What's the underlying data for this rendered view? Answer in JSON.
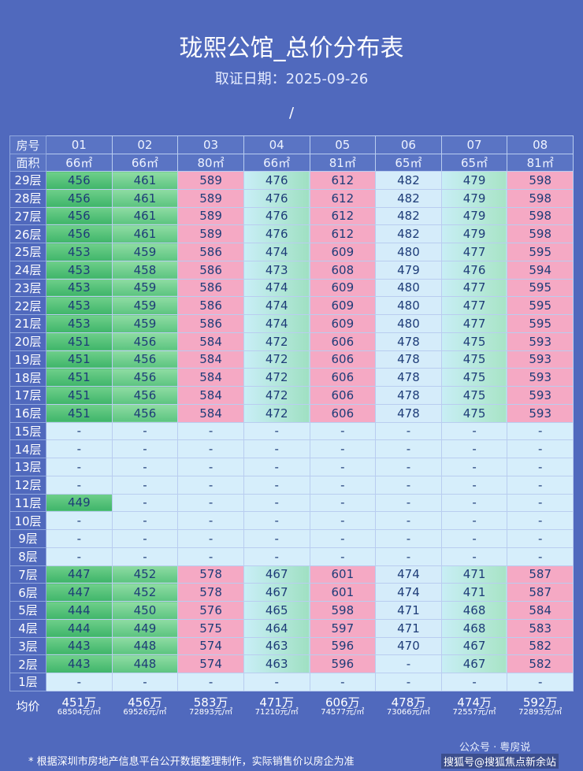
{
  "header": {
    "title": "珑熙公馆_总价分布表",
    "subtitle": "取证日期：2025-09-26",
    "divider": "/"
  },
  "table": {
    "unit_header": "房号",
    "area_header": "面积",
    "units": [
      "01",
      "02",
      "03",
      "04",
      "05",
      "06",
      "07",
      "08"
    ],
    "areas": [
      "66㎡",
      "66㎡",
      "80㎡",
      "66㎡",
      "81㎡",
      "65㎡",
      "65㎡",
      "81㎡"
    ],
    "rows": [
      {
        "floor": "29层",
        "cells": [
          "456",
          "461",
          "589",
          "476",
          "612",
          "482",
          "479",
          "598"
        ]
      },
      {
        "floor": "28层",
        "cells": [
          "456",
          "461",
          "589",
          "476",
          "612",
          "482",
          "479",
          "598"
        ]
      },
      {
        "floor": "27层",
        "cells": [
          "456",
          "461",
          "589",
          "476",
          "612",
          "482",
          "479",
          "598"
        ]
      },
      {
        "floor": "26层",
        "cells": [
          "456",
          "461",
          "589",
          "476",
          "612",
          "482",
          "479",
          "598"
        ]
      },
      {
        "floor": "25层",
        "cells": [
          "453",
          "459",
          "586",
          "474",
          "609",
          "480",
          "477",
          "595"
        ]
      },
      {
        "floor": "24层",
        "cells": [
          "453",
          "458",
          "586",
          "473",
          "608",
          "479",
          "476",
          "594"
        ]
      },
      {
        "floor": "23层",
        "cells": [
          "453",
          "459",
          "586",
          "474",
          "609",
          "480",
          "477",
          "595"
        ]
      },
      {
        "floor": "22层",
        "cells": [
          "453",
          "459",
          "586",
          "474",
          "609",
          "480",
          "477",
          "595"
        ]
      },
      {
        "floor": "21层",
        "cells": [
          "453",
          "459",
          "586",
          "474",
          "609",
          "480",
          "477",
          "595"
        ]
      },
      {
        "floor": "20层",
        "cells": [
          "451",
          "456",
          "584",
          "472",
          "606",
          "478",
          "475",
          "593"
        ]
      },
      {
        "floor": "19层",
        "cells": [
          "451",
          "456",
          "584",
          "472",
          "606",
          "478",
          "475",
          "593"
        ]
      },
      {
        "floor": "18层",
        "cells": [
          "451",
          "456",
          "584",
          "472",
          "606",
          "478",
          "475",
          "593"
        ]
      },
      {
        "floor": "17层",
        "cells": [
          "451",
          "456",
          "584",
          "472",
          "606",
          "478",
          "475",
          "593"
        ]
      },
      {
        "floor": "16层",
        "cells": [
          "451",
          "456",
          "584",
          "472",
          "606",
          "478",
          "475",
          "593"
        ]
      },
      {
        "floor": "15层",
        "cells": [
          "-",
          "-",
          "-",
          "-",
          "-",
          "-",
          "-",
          "-"
        ]
      },
      {
        "floor": "14层",
        "cells": [
          "-",
          "-",
          "-",
          "-",
          "-",
          "-",
          "-",
          "-"
        ]
      },
      {
        "floor": "13层",
        "cells": [
          "-",
          "-",
          "-",
          "-",
          "-",
          "-",
          "-",
          "-"
        ]
      },
      {
        "floor": "12层",
        "cells": [
          "-",
          "-",
          "-",
          "-",
          "-",
          "-",
          "-",
          "-"
        ]
      },
      {
        "floor": "11层",
        "cells": [
          "449",
          "-",
          "-",
          "-",
          "-",
          "-",
          "-",
          "-"
        ]
      },
      {
        "floor": "10层",
        "cells": [
          "-",
          "-",
          "-",
          "-",
          "-",
          "-",
          "-",
          "-"
        ]
      },
      {
        "floor": "9层",
        "cells": [
          "-",
          "-",
          "-",
          "-",
          "-",
          "-",
          "-",
          "-"
        ]
      },
      {
        "floor": "8层",
        "cells": [
          "-",
          "-",
          "-",
          "-",
          "-",
          "-",
          "-",
          "-"
        ]
      },
      {
        "floor": "7层",
        "cells": [
          "447",
          "452",
          "578",
          "467",
          "601",
          "474",
          "471",
          "587"
        ]
      },
      {
        "floor": "6层",
        "cells": [
          "447",
          "452",
          "578",
          "467",
          "601",
          "474",
          "471",
          "587"
        ]
      },
      {
        "floor": "5层",
        "cells": [
          "444",
          "450",
          "576",
          "465",
          "598",
          "471",
          "468",
          "584"
        ]
      },
      {
        "floor": "4层",
        "cells": [
          "444",
          "449",
          "575",
          "464",
          "597",
          "471",
          "468",
          "583"
        ]
      },
      {
        "floor": "3层",
        "cells": [
          "443",
          "448",
          "574",
          "463",
          "596",
          "470",
          "467",
          "582"
        ]
      },
      {
        "floor": "2层",
        "cells": [
          "443",
          "448",
          "574",
          "463",
          "596",
          "-",
          "467",
          "582"
        ]
      },
      {
        "floor": "1层",
        "cells": [
          "-",
          "-",
          "-",
          "-",
          "-",
          "-",
          "-",
          "-"
        ]
      }
    ],
    "average": {
      "label": "均价",
      "totals": [
        "451万",
        "456万",
        "583万",
        "471万",
        "606万",
        "478万",
        "474万",
        "592万"
      ],
      "unit_prices": [
        "68504元/㎡",
        "69526元/㎡",
        "72893元/㎡",
        "71210元/㎡",
        "74577元/㎡",
        "73066元/㎡",
        "72557元/㎡",
        "72893元/㎡"
      ]
    }
  },
  "footer": {
    "note": "* 根据深圳市房地产信息平台公开数据整理制作，实际销售价以房企为准",
    "watermark_account": "公众号 · 粤房说",
    "watermark_site": "搜狐号@搜狐焦点新余站"
  }
}
